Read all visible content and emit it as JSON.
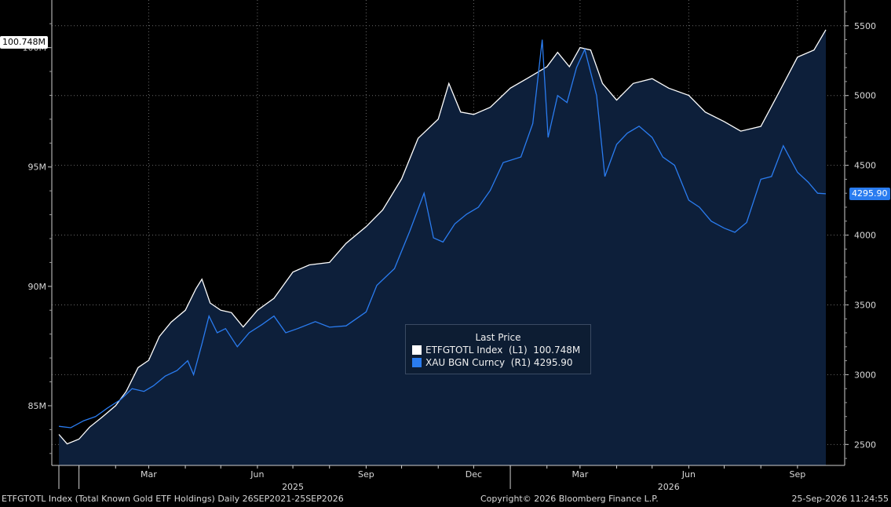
{
  "chart_data": {
    "type": "area",
    "left_axis": {
      "ticks": [
        "85M",
        "90M",
        "95M",
        "100M"
      ],
      "values": [
        85,
        90,
        95,
        100
      ],
      "ylim": [
        82.5,
        101.5
      ]
    },
    "right_axis": {
      "ticks": [
        "2500",
        "3000",
        "3500",
        "4000",
        "4500",
        "5000",
        "5500"
      ],
      "values": [
        2500,
        3000,
        3500,
        4000,
        4500,
        5000,
        5500
      ],
      "ylim": [
        2350,
        5600
      ]
    },
    "x_month_ticks": [
      "Mar",
      "Jun",
      "Sep",
      "Dec",
      "Mar",
      "Jun",
      "Sep"
    ],
    "x_year_labels": [
      "2025",
      "2026"
    ],
    "x_range": [
      "2024-12-15",
      "2026-09-25"
    ],
    "grid": true,
    "series": [
      {
        "name": "ETFGTOTL Index",
        "axis": "left",
        "color": "#ffffff",
        "fill": "#0d1f3a",
        "points": [
          [
            "2024-12-15",
            83.8
          ],
          [
            "2024-12-22",
            83.4
          ],
          [
            "2025-01-01",
            83.6
          ],
          [
            "2025-01-10",
            84.1
          ],
          [
            "2025-01-20",
            84.5
          ],
          [
            "2025-02-01",
            85.0
          ],
          [
            "2025-02-10",
            85.6
          ],
          [
            "2025-02-20",
            86.6
          ],
          [
            "2025-03-01",
            86.9
          ],
          [
            "2025-03-10",
            87.9
          ],
          [
            "2025-03-20",
            88.5
          ],
          [
            "2025-04-01",
            89.0
          ],
          [
            "2025-04-10",
            89.9
          ],
          [
            "2025-04-15",
            90.3
          ],
          [
            "2025-04-22",
            89.3
          ],
          [
            "2025-05-01",
            89.0
          ],
          [
            "2025-05-10",
            88.9
          ],
          [
            "2025-05-20",
            88.3
          ],
          [
            "2025-06-01",
            89.0
          ],
          [
            "2025-06-15",
            89.5
          ],
          [
            "2025-07-01",
            90.6
          ],
          [
            "2025-07-15",
            90.9
          ],
          [
            "2025-08-01",
            91.0
          ],
          [
            "2025-08-15",
            91.8
          ],
          [
            "2025-09-01",
            92.5
          ],
          [
            "2025-09-15",
            93.2
          ],
          [
            "2025-10-01",
            94.5
          ],
          [
            "2025-10-15",
            96.2
          ],
          [
            "2025-11-01",
            97.0
          ],
          [
            "2025-11-10",
            98.5
          ],
          [
            "2025-11-20",
            97.3
          ],
          [
            "2025-12-01",
            97.2
          ],
          [
            "2025-12-15",
            97.5
          ],
          [
            "2026-01-01",
            98.3
          ],
          [
            "2026-01-15",
            98.7
          ],
          [
            "2026-02-01",
            99.2
          ],
          [
            "2026-02-10",
            99.8
          ],
          [
            "2026-02-20",
            99.2
          ],
          [
            "2026-03-01",
            100.0
          ],
          [
            "2026-03-10",
            99.9
          ],
          [
            "2026-03-20",
            98.5
          ],
          [
            "2026-04-01",
            97.8
          ],
          [
            "2026-04-15",
            98.5
          ],
          [
            "2026-05-01",
            98.7
          ],
          [
            "2026-05-15",
            98.3
          ],
          [
            "2026-06-01",
            98.0
          ],
          [
            "2026-06-15",
            97.3
          ],
          [
            "2026-07-01",
            96.9
          ],
          [
            "2026-07-15",
            96.5
          ],
          [
            "2026-08-01",
            96.7
          ],
          [
            "2026-08-15",
            98.0
          ],
          [
            "2026-09-01",
            99.6
          ],
          [
            "2026-09-15",
            99.9
          ],
          [
            "2026-09-25",
            100.748
          ]
        ]
      },
      {
        "name": "XAU BGN Curncy",
        "axis": "right",
        "color": "#2a7cf0",
        "points": [
          [
            "2024-12-15",
            2630
          ],
          [
            "2024-12-25",
            2620
          ],
          [
            "2025-01-05",
            2670
          ],
          [
            "2025-01-15",
            2700
          ],
          [
            "2025-01-25",
            2760
          ],
          [
            "2025-02-05",
            2820
          ],
          [
            "2025-02-15",
            2900
          ],
          [
            "2025-02-25",
            2880
          ],
          [
            "2025-03-05",
            2920
          ],
          [
            "2025-03-15",
            2990
          ],
          [
            "2025-03-25",
            3030
          ],
          [
            "2025-04-03",
            3100
          ],
          [
            "2025-04-08",
            3000
          ],
          [
            "2025-04-15",
            3220
          ],
          [
            "2025-04-21",
            3420
          ],
          [
            "2025-04-28",
            3300
          ],
          [
            "2025-05-05",
            3330
          ],
          [
            "2025-05-15",
            3200
          ],
          [
            "2025-05-25",
            3300
          ],
          [
            "2025-06-05",
            3360
          ],
          [
            "2025-06-15",
            3420
          ],
          [
            "2025-06-25",
            3300
          ],
          [
            "2025-07-05",
            3330
          ],
          [
            "2025-07-20",
            3380
          ],
          [
            "2025-08-01",
            3340
          ],
          [
            "2025-08-15",
            3350
          ],
          [
            "2025-09-01",
            3450
          ],
          [
            "2025-09-10",
            3640
          ],
          [
            "2025-09-25",
            3760
          ],
          [
            "2025-10-08",
            4030
          ],
          [
            "2025-10-20",
            4300
          ],
          [
            "2025-10-28",
            3980
          ],
          [
            "2025-11-05",
            3950
          ],
          [
            "2025-11-15",
            4080
          ],
          [
            "2025-11-25",
            4150
          ],
          [
            "2025-12-05",
            4200
          ],
          [
            "2025-12-15",
            4320
          ],
          [
            "2025-12-26",
            4520
          ],
          [
            "2026-01-10",
            4560
          ],
          [
            "2026-01-20",
            4800
          ],
          [
            "2026-01-28",
            5400
          ],
          [
            "2026-02-02",
            4700
          ],
          [
            "2026-02-10",
            5000
          ],
          [
            "2026-02-18",
            4950
          ],
          [
            "2026-02-26",
            5200
          ],
          [
            "2026-03-05",
            5330
          ],
          [
            "2026-03-15",
            5000
          ],
          [
            "2026-03-22",
            4420
          ],
          [
            "2026-04-01",
            4650
          ],
          [
            "2026-04-10",
            4730
          ],
          [
            "2026-04-20",
            4780
          ],
          [
            "2026-05-01",
            4700
          ],
          [
            "2026-05-10",
            4560
          ],
          [
            "2026-05-20",
            4500
          ],
          [
            "2026-06-01",
            4250
          ],
          [
            "2026-06-10",
            4200
          ],
          [
            "2026-06-20",
            4100
          ],
          [
            "2026-07-01",
            4050
          ],
          [
            "2026-07-10",
            4020
          ],
          [
            "2026-07-20",
            4090
          ],
          [
            "2026-08-01",
            4400
          ],
          [
            "2026-08-10",
            4420
          ],
          [
            "2026-08-20",
            4640
          ],
          [
            "2026-09-01",
            4450
          ],
          [
            "2026-09-10",
            4380
          ],
          [
            "2026-09-18",
            4300
          ],
          [
            "2026-09-25",
            4295.9
          ]
        ]
      }
    ],
    "legend": {
      "placement": "center-bottom",
      "title": "Last Price",
      "entries": [
        "ETFGTOTL Index  (L1)  100.748M",
        "XAU BGN Curncy  (R1) 4295.90"
      ]
    },
    "last_value_labels": {
      "left": "100.748M",
      "right": "4295.90"
    }
  },
  "footer": {
    "left": "ETFGTOTL Index (Total Known Gold ETF Holdings) Daily 26SEP2021-25SEP2026",
    "center": "Copyright© 2026 Bloomberg Finance L.P.",
    "right": "25-Sep-2026 11:24:55"
  }
}
